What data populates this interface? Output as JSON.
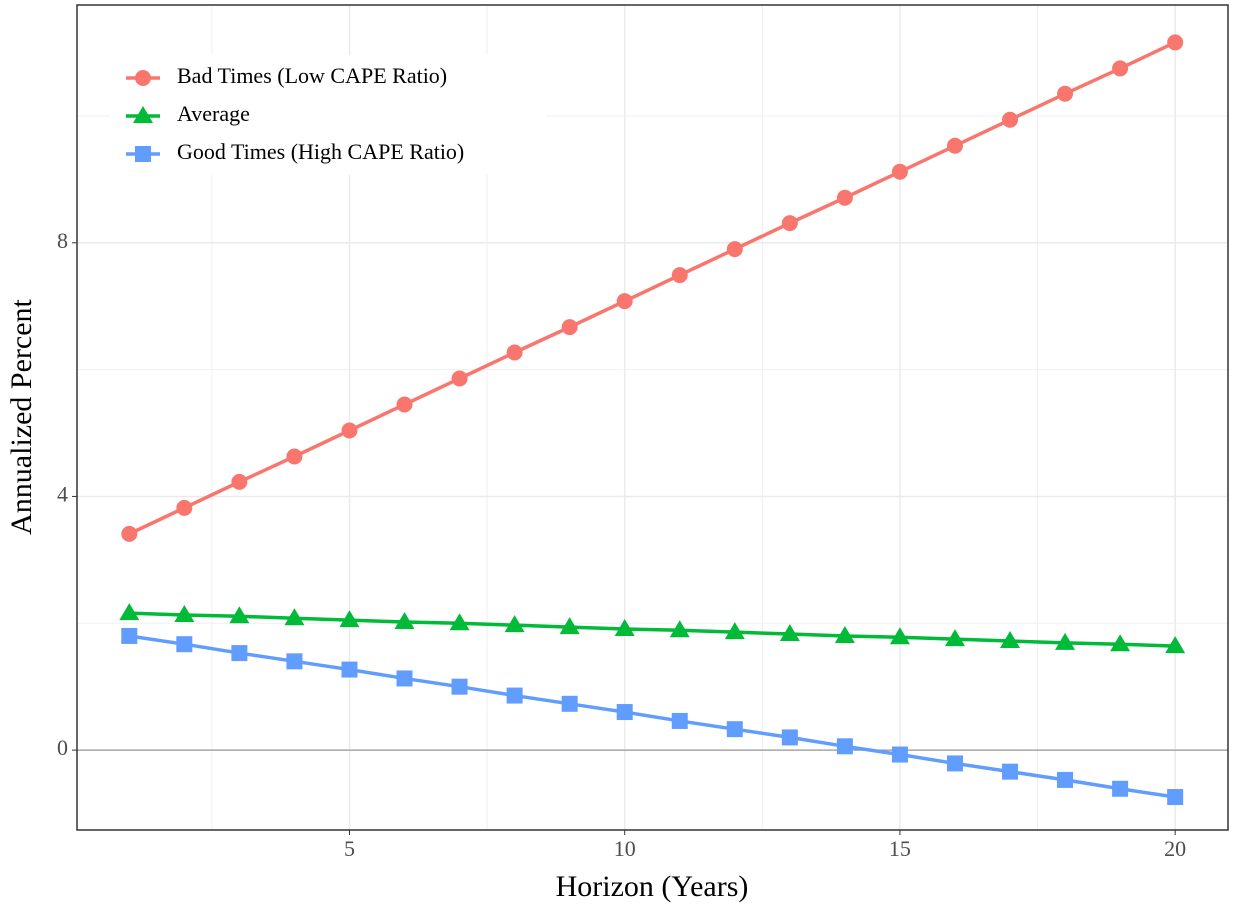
{
  "chart_data": {
    "type": "line",
    "xlabel": "Horizon (Years)",
    "ylabel": "Annualized Percent",
    "x": [
      1,
      2,
      3,
      4,
      5,
      6,
      7,
      8,
      9,
      10,
      11,
      12,
      13,
      14,
      15,
      16,
      17,
      18,
      19,
      20
    ],
    "series": [
      {
        "name": "Bad Times (Low CAPE Ratio)",
        "color": "#F8766D",
        "marker": "circle",
        "values": [
          3.41,
          3.82,
          4.23,
          4.63,
          5.04,
          5.45,
          5.86,
          6.27,
          6.67,
          7.08,
          7.49,
          7.9,
          8.31,
          8.71,
          9.12,
          9.53,
          9.94,
          10.35,
          10.75,
          11.16
        ]
      },
      {
        "name": "Average",
        "color": "#00BA38",
        "marker": "triangle",
        "values": [
          2.16,
          2.13,
          2.11,
          2.08,
          2.05,
          2.02,
          2.0,
          1.97,
          1.94,
          1.91,
          1.89,
          1.86,
          1.83,
          1.8,
          1.78,
          1.75,
          1.72,
          1.69,
          1.67,
          1.64
        ]
      },
      {
        "name": "Good Times (High CAPE Ratio)",
        "color": "#619CFF",
        "marker": "square",
        "values": [
          1.8,
          1.67,
          1.53,
          1.4,
          1.27,
          1.13,
          1.0,
          0.86,
          0.73,
          0.6,
          0.46,
          0.33,
          0.2,
          0.06,
          -0.07,
          -0.21,
          -0.34,
          -0.47,
          -0.61,
          -0.74
        ]
      }
    ],
    "xlim": [
      0.05,
      20.96
    ],
    "xticks": [
      5,
      10,
      15,
      20
    ],
    "ylim": [
      -1.26,
      11.75
    ],
    "yticks": [
      0,
      4,
      8
    ],
    "hline": 0,
    "grid": true,
    "legend": "top-left"
  }
}
